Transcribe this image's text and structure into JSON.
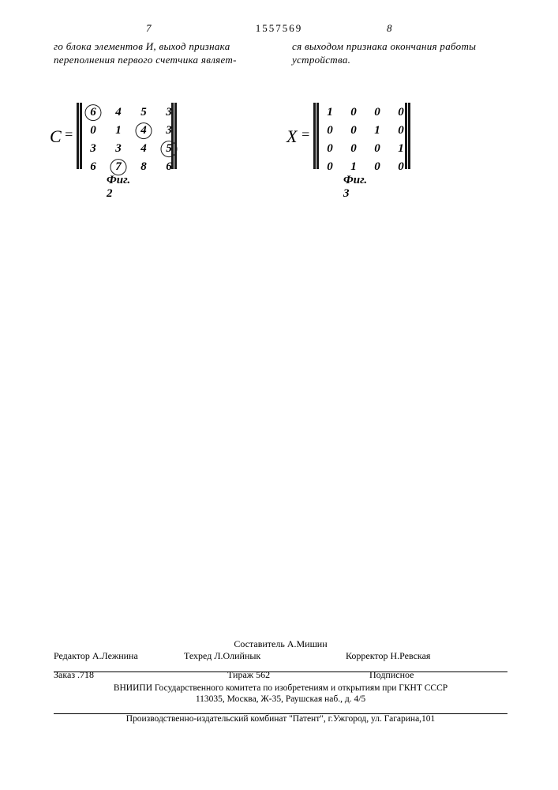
{
  "header": {
    "page_left": "7",
    "patent_no": "1557569",
    "page_right": "8"
  },
  "body": {
    "left_col": "го блока элементов И, выход признака переполнения первого счетчика являет-",
    "right_col": "ся выходом признака окончания работы устройства."
  },
  "matrices": {
    "c": {
      "var": "C",
      "grid": [
        [
          {
            "v": "6",
            "circ": true
          },
          {
            "v": "4",
            "circ": false
          },
          {
            "v": "5",
            "circ": false
          },
          {
            "v": "3",
            "circ": false
          }
        ],
        [
          {
            "v": "0",
            "circ": false
          },
          {
            "v": "1",
            "circ": false
          },
          {
            "v": "4",
            "circ": true
          },
          {
            "v": "3",
            "circ": false
          }
        ],
        [
          {
            "v": "3",
            "circ": false
          },
          {
            "v": "3",
            "circ": false
          },
          {
            "v": "4",
            "circ": false
          },
          {
            "v": "5",
            "circ": true
          }
        ],
        [
          {
            "v": "6",
            "circ": false
          },
          {
            "v": "7",
            "circ": true
          },
          {
            "v": "8",
            "circ": false
          },
          {
            "v": "6",
            "circ": false
          }
        ]
      ],
      "fig": "Фиг. 2"
    },
    "x": {
      "var": "X",
      "grid": [
        [
          {
            "v": "1",
            "circ": false
          },
          {
            "v": "0",
            "circ": false
          },
          {
            "v": "0",
            "circ": false
          },
          {
            "v": "0",
            "circ": false
          }
        ],
        [
          {
            "v": "0",
            "circ": false
          },
          {
            "v": "0",
            "circ": false
          },
          {
            "v": "1",
            "circ": false
          },
          {
            "v": "0",
            "circ": false
          }
        ],
        [
          {
            "v": "0",
            "circ": false
          },
          {
            "v": "0",
            "circ": false
          },
          {
            "v": "0",
            "circ": false
          },
          {
            "v": "1",
            "circ": false
          }
        ],
        [
          {
            "v": "0",
            "circ": false
          },
          {
            "v": "1",
            "circ": false
          },
          {
            "v": "0",
            "circ": false
          },
          {
            "v": "0",
            "circ": false
          }
        ]
      ],
      "fig": "Фиг. 3"
    }
  },
  "footer": {
    "compiler": "Составитель А.Мишин",
    "editor": "Редактор А.Лежнина",
    "techred": "Техред Л.Олийнык",
    "corrector": "Корректор Н.Ревская",
    "zakaz": "Заказ .718",
    "tirazh": "Тираж 562",
    "podpisnoe": "Подписное",
    "org1": "ВНИИПИ Государственного комитета по изобретениям и открытиям при ГКНТ СССР",
    "org2": "113035, Москва, Ж-35, Раушская наб., д. 4/5",
    "org3": "Производственно-издательский комбинат \"Патент\", г.Ужгород, ул. Гагарина,101"
  }
}
